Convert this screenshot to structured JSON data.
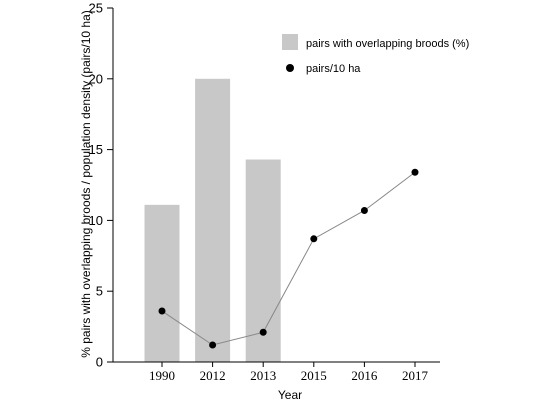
{
  "chart_data": {
    "type": "bar",
    "categories": [
      "1990",
      "2012",
      "2013",
      "2015",
      "2016",
      "2017"
    ],
    "series": [
      {
        "name": "pairs with overlapping broods (%)",
        "type": "bar",
        "values": [
          11.1,
          20.0,
          14.3,
          null,
          null,
          null
        ],
        "color": "#c8c8c8"
      },
      {
        "name": "pairs/10 ha",
        "type": "line",
        "values": [
          3.6,
          1.2,
          2.1,
          8.7,
          10.7,
          13.4
        ],
        "color": "#000000",
        "line_color": "#888888"
      }
    ],
    "xlabel": "Year",
    "ylabel": "% pairs with overlapping broods / population density (pairs/10 ha)",
    "ylim": [
      0,
      25
    ],
    "yticks": [
      0,
      5,
      10,
      15,
      20,
      25
    ],
    "grid": false,
    "legend_position": "top-right"
  }
}
